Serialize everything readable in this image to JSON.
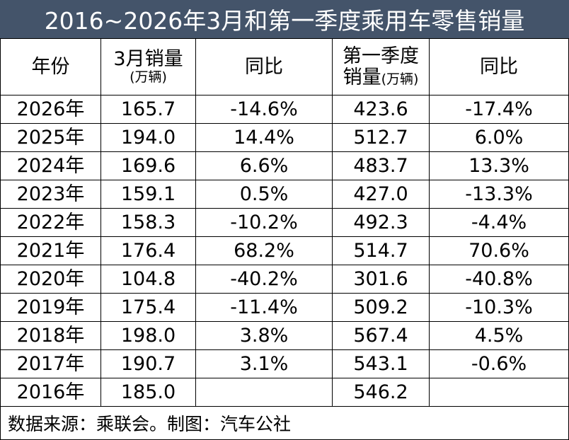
{
  "title": "2016~2026年3月和第一季度乘用车零售销量",
  "table": {
    "headers": [
      {
        "text": "年份"
      },
      {
        "text": "3月销量",
        "unit": "(万辆)"
      },
      {
        "text": "同比"
      },
      {
        "text": "第一季度",
        "text2": "销量",
        "unit": "(万辆)"
      },
      {
        "text": "同比"
      }
    ],
    "rows": [
      [
        "2026年",
        "165.7",
        "-14.6%",
        "423.6",
        "-17.4%"
      ],
      [
        "2025年",
        "194.0",
        "14.4%",
        "512.7",
        "6.0%"
      ],
      [
        "2024年",
        "169.6",
        "6.6%",
        "483.7",
        "13.3%"
      ],
      [
        "2023年",
        "159.1",
        "0.5%",
        "427.0",
        "-13.3%"
      ],
      [
        "2022年",
        "158.3",
        "-10.2%",
        "492.3",
        "-4.4%"
      ],
      [
        "2021年",
        "176.4",
        "68.2%",
        "514.7",
        "70.6%"
      ],
      [
        "2020年",
        "104.8",
        "-40.2%",
        "301.6",
        "-40.8%"
      ],
      [
        "2019年",
        "175.4",
        "-11.4%",
        "509.2",
        "-10.3%"
      ],
      [
        "2018年",
        "198.0",
        "3.8%",
        "567.4",
        "4.5%"
      ],
      [
        "2017年",
        "190.7",
        "3.1%",
        "543.1",
        "-0.6%"
      ],
      [
        "2016年",
        "185.0",
        null,
        "546.2",
        null
      ]
    ]
  },
  "footer": "数据来源：乘联会。制图：汽车公社"
}
